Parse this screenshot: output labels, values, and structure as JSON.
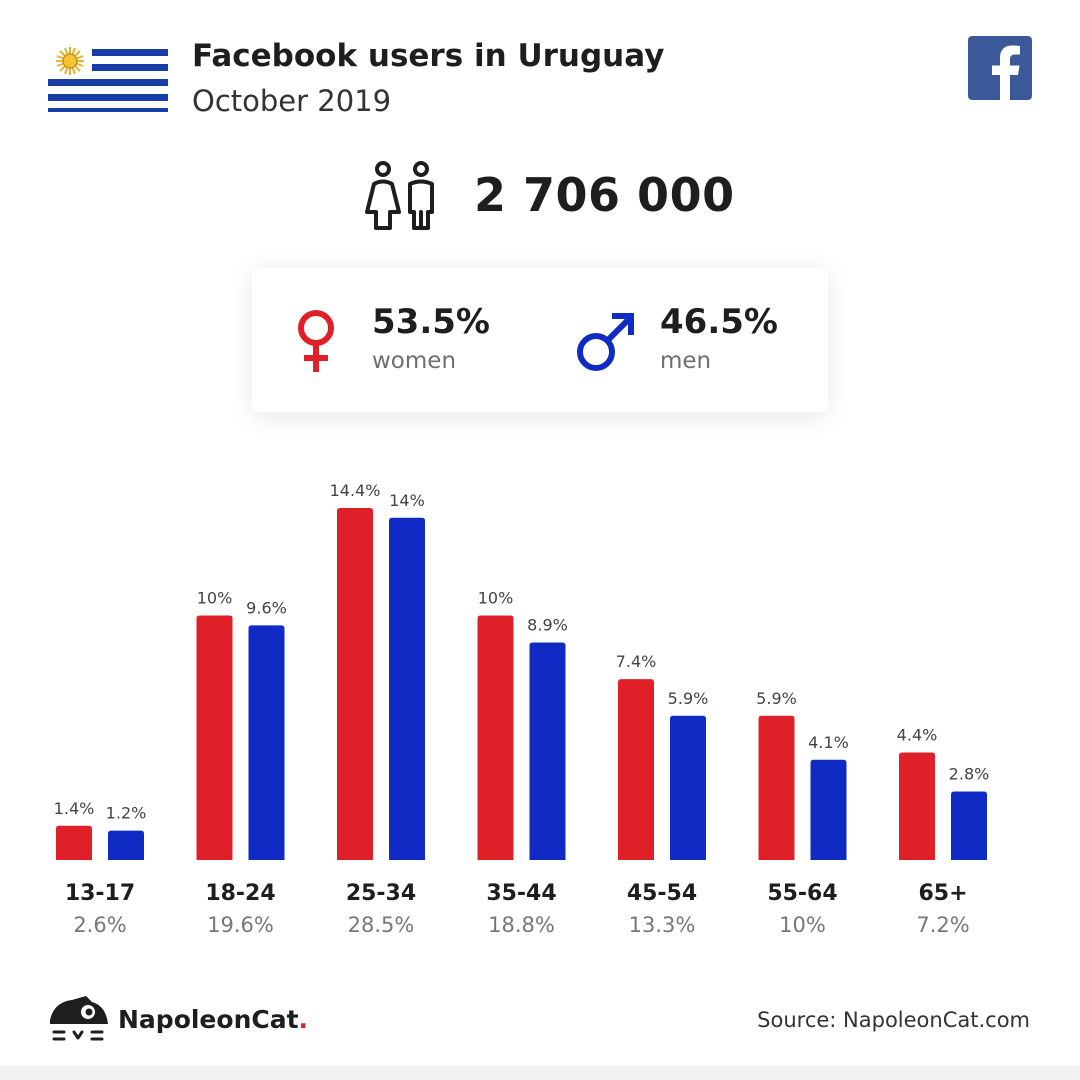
{
  "header": {
    "title": "Facebook users in Uruguay",
    "subtitle": "October 2019",
    "flag_icon": "uruguay-flag-icon",
    "brand_icon": "facebook-logo-icon"
  },
  "total": {
    "icon": "people-icon",
    "value": "2 706 000"
  },
  "gender": {
    "women": {
      "icon": "female-symbol-icon",
      "percent": "53.5%",
      "label": "women",
      "color": "#e02028"
    },
    "men": {
      "icon": "male-symbol-icon",
      "percent": "46.5%",
      "label": "men",
      "color": "#0f2bc4"
    }
  },
  "chart_data": {
    "type": "bar",
    "title": "",
    "xlabel": "",
    "ylabel": "",
    "categories": [
      "13-17",
      "18-24",
      "25-34",
      "35-44",
      "45-54",
      "55-64",
      "65+"
    ],
    "category_totals": [
      "2.6%",
      "19.6%",
      "28.5%",
      "18.8%",
      "13.3%",
      "10%",
      "7.2%"
    ],
    "series": [
      {
        "color": "#e02028",
        "values": [
          1.4,
          10,
          14.4,
          10,
          7.4,
          5.9,
          4.4
        ],
        "labels": [
          "1.4%",
          "10%",
          "14.4%",
          "10%",
          "7.4%",
          "5.9%",
          "4.4%"
        ]
      },
      {
        "color": "#0f2bc4",
        "values": [
          1.2,
          9.6,
          14,
          8.9,
          5.9,
          4.1,
          2.8
        ],
        "labels": [
          "1.2%",
          "9.6%",
          "14%",
          "8.9%",
          "5.9%",
          "4.1%",
          "2.8%"
        ]
      }
    ],
    "ylim": [
      0,
      14.4
    ],
    "grid": false,
    "legend": "none"
  },
  "footer": {
    "logo_icon": "napoleoncat-logo-icon",
    "brand_name": "NapoleonCat",
    "brand_dot": ".",
    "source": "Source: NapoleonCat.com"
  }
}
